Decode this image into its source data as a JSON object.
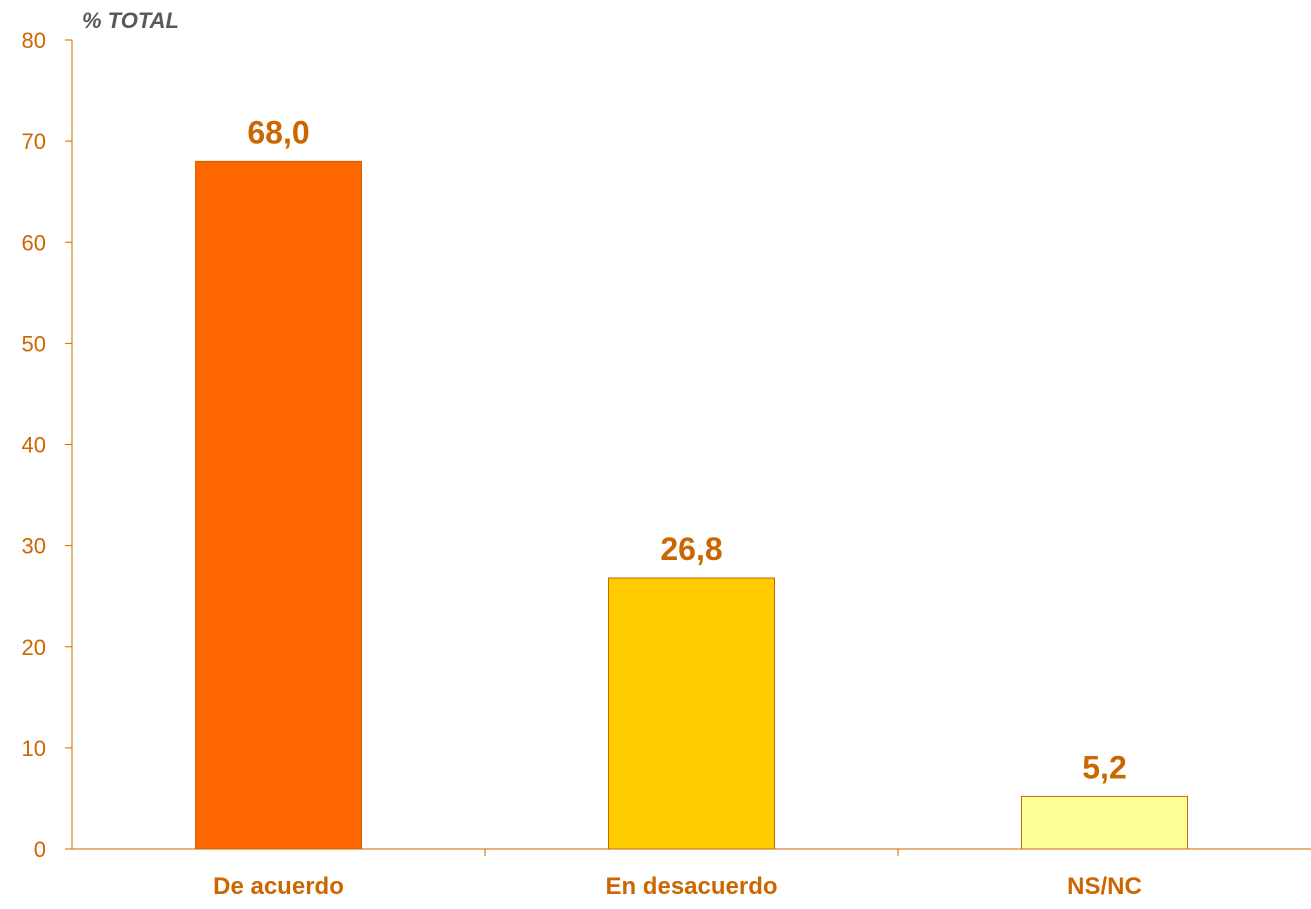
{
  "chart_data": {
    "type": "bar",
    "ylabel": "% TOTAL",
    "categories": [
      "De acuerdo",
      "En desacuerdo",
      "NS/NC"
    ],
    "values": [
      68.0,
      26.8,
      5.2
    ],
    "value_labels": [
      "68,0",
      "26,8",
      "5,2"
    ],
    "ylim": [
      0,
      80
    ],
    "yticks": [
      0,
      10,
      20,
      30,
      40,
      50,
      60,
      70,
      80
    ],
    "ytick_labels": [
      "0",
      "10",
      "20",
      "30",
      "40",
      "50",
      "60",
      "70",
      "80"
    ],
    "grid": false,
    "legend": "none",
    "colors": {
      "bars": [
        "#ff6600",
        "#ffcc00",
        "#ffff99"
      ],
      "bar_edge": "#cc6600",
      "axis": "#cc6600",
      "text": "#cc6600",
      "ylabel": "#595959"
    }
  }
}
